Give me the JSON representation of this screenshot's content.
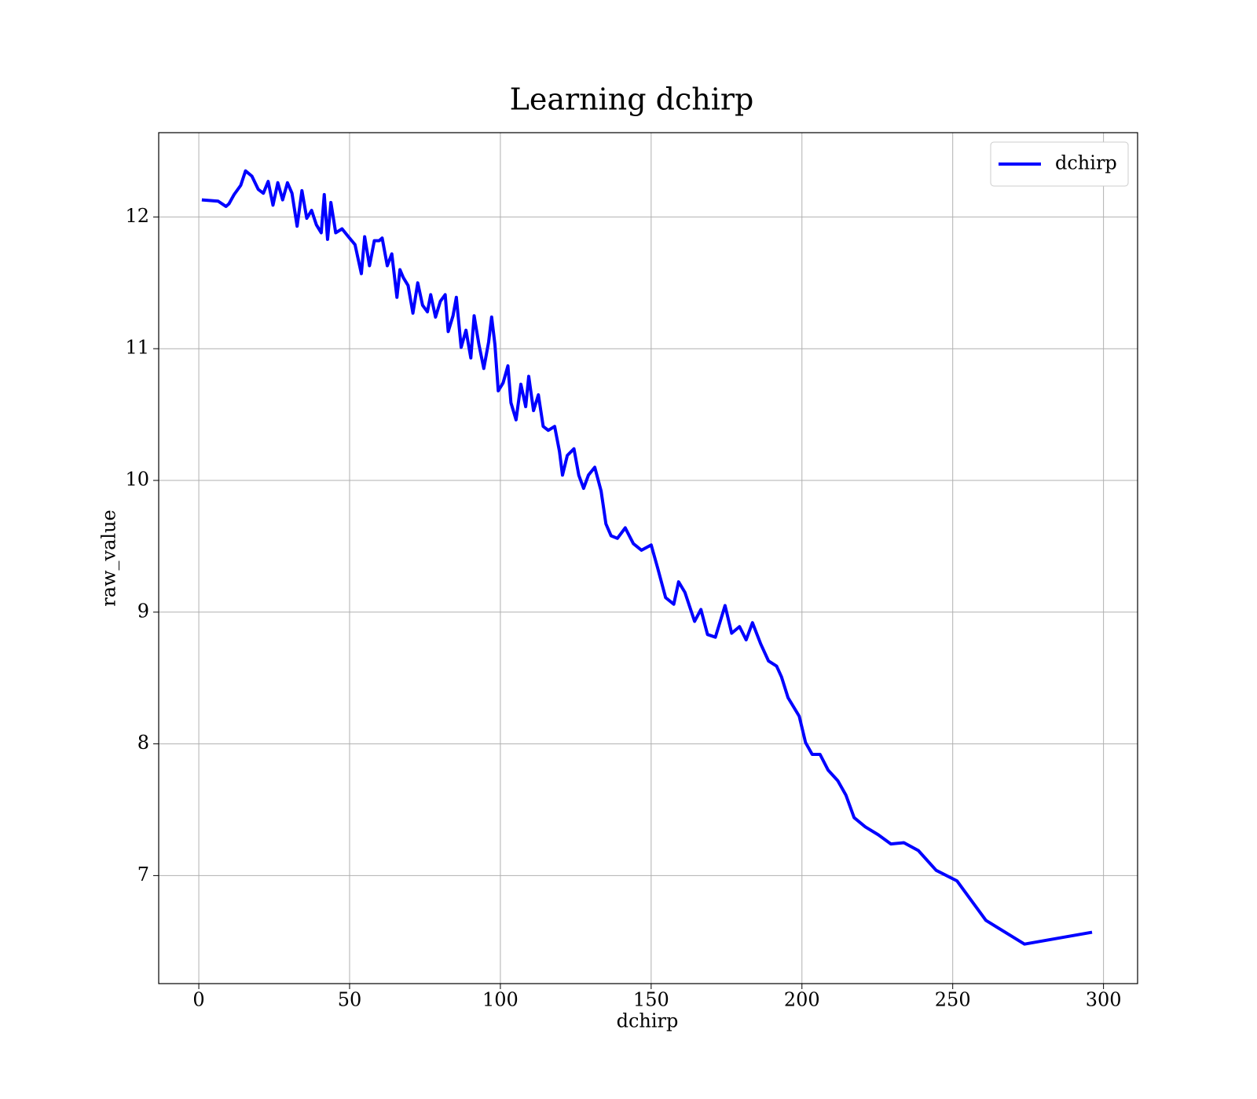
{
  "chart_data": {
    "type": "line",
    "title": "Learning dchirp",
    "xlabel": "dchirp",
    "ylabel": "raw_value",
    "x": [
      1,
      6.4,
      9,
      10,
      11.7,
      13.9,
      15.5,
      17.6,
      19.7,
      21.4,
      23,
      24.6,
      26.2,
      27.8,
      29.4,
      30.9,
      32.6,
      34.2,
      35.8,
      37.4,
      39,
      40.6,
      41.6,
      42.7,
      43.8,
      45.4,
      47.5,
      49.6,
      51.8,
      53.9,
      55,
      56.6,
      58.2,
      59.8,
      60.8,
      62.5,
      64,
      65.7,
      66.7,
      67.8,
      69.4,
      71,
      72.6,
      74.2,
      75.8,
      76.9,
      78.5,
      80.1,
      81.7,
      82.7,
      84.3,
      85.4,
      87,
      88.6,
      90.2,
      91.3,
      92.9,
      94.5,
      96.1,
      97.1,
      98.2,
      99.3,
      100.9,
      102.5,
      103.5,
      105.2,
      106.8,
      108.4,
      109.4,
      111,
      112.6,
      114.2,
      115.9,
      118,
      119.6,
      120.6,
      122.2,
      124.4,
      126,
      127.6,
      129.2,
      131.3,
      133.4,
      135,
      136.7,
      138.8,
      141.4,
      144.1,
      146.8,
      150,
      152.1,
      154.8,
      157.5,
      159.1,
      161.2,
      164.4,
      166.5,
      168.7,
      171.3,
      172.9,
      174.5,
      176.7,
      179.3,
      181.5,
      183.6,
      186.3,
      188.9,
      191.6,
      193.2,
      195.4,
      199.1,
      201.2,
      203.4,
      206,
      208.7,
      211.9,
      214.6,
      217.3,
      221,
      225.3,
      229.5,
      233.8,
      238.6,
      244.5,
      251.4,
      261,
      273.8,
      296.2
    ],
    "series": [
      {
        "name": "dchirp",
        "color": "#0000ff",
        "values": [
          12.13,
          12.12,
          12.08,
          12.1,
          12.17,
          12.24,
          12.35,
          12.31,
          12.21,
          12.18,
          12.27,
          12.09,
          12.26,
          12.13,
          12.26,
          12.18,
          11.93,
          12.2,
          11.99,
          12.05,
          11.94,
          11.88,
          12.17,
          11.83,
          12.11,
          11.88,
          11.91,
          11.85,
          11.79,
          11.57,
          11.85,
          11.63,
          11.82,
          11.82,
          11.84,
          11.63,
          11.72,
          11.39,
          11.6,
          11.54,
          11.48,
          11.27,
          11.5,
          11.33,
          11.28,
          11.41,
          11.24,
          11.36,
          11.41,
          11.13,
          11.25,
          11.39,
          11.01,
          11.14,
          10.93,
          11.25,
          11.03,
          10.85,
          11.05,
          11.24,
          11.03,
          10.68,
          10.74,
          10.87,
          10.59,
          10.46,
          10.73,
          10.56,
          10.79,
          10.53,
          10.65,
          10.41,
          10.38,
          10.41,
          10.22,
          10.04,
          10.19,
          10.24,
          10.04,
          9.94,
          10.04,
          10.1,
          9.92,
          9.67,
          9.58,
          9.56,
          9.64,
          9.52,
          9.47,
          9.51,
          9.34,
          9.11,
          9.06,
          9.23,
          9.15,
          8.93,
          9.02,
          8.83,
          8.81,
          8.93,
          9.05,
          8.84,
          8.89,
          8.79,
          8.92,
          8.76,
          8.63,
          8.59,
          8.51,
          8.35,
          8.21,
          8.01,
          7.92,
          7.92,
          7.8,
          7.72,
          7.61,
          7.44,
          7.37,
          7.31,
          7.24,
          7.25,
          7.19,
          7.04,
          6.96,
          6.66,
          6.48,
          6.57
        ]
      }
    ],
    "xlim": [
      -13.3,
      311.3
    ],
    "ylim": [
      6.18,
      12.64
    ],
    "xticks": [
      0,
      50,
      100,
      150,
      200,
      250,
      300
    ],
    "yticks": [
      7,
      8,
      9,
      10,
      11,
      12
    ],
    "grid": true,
    "legend": "upper right"
  }
}
